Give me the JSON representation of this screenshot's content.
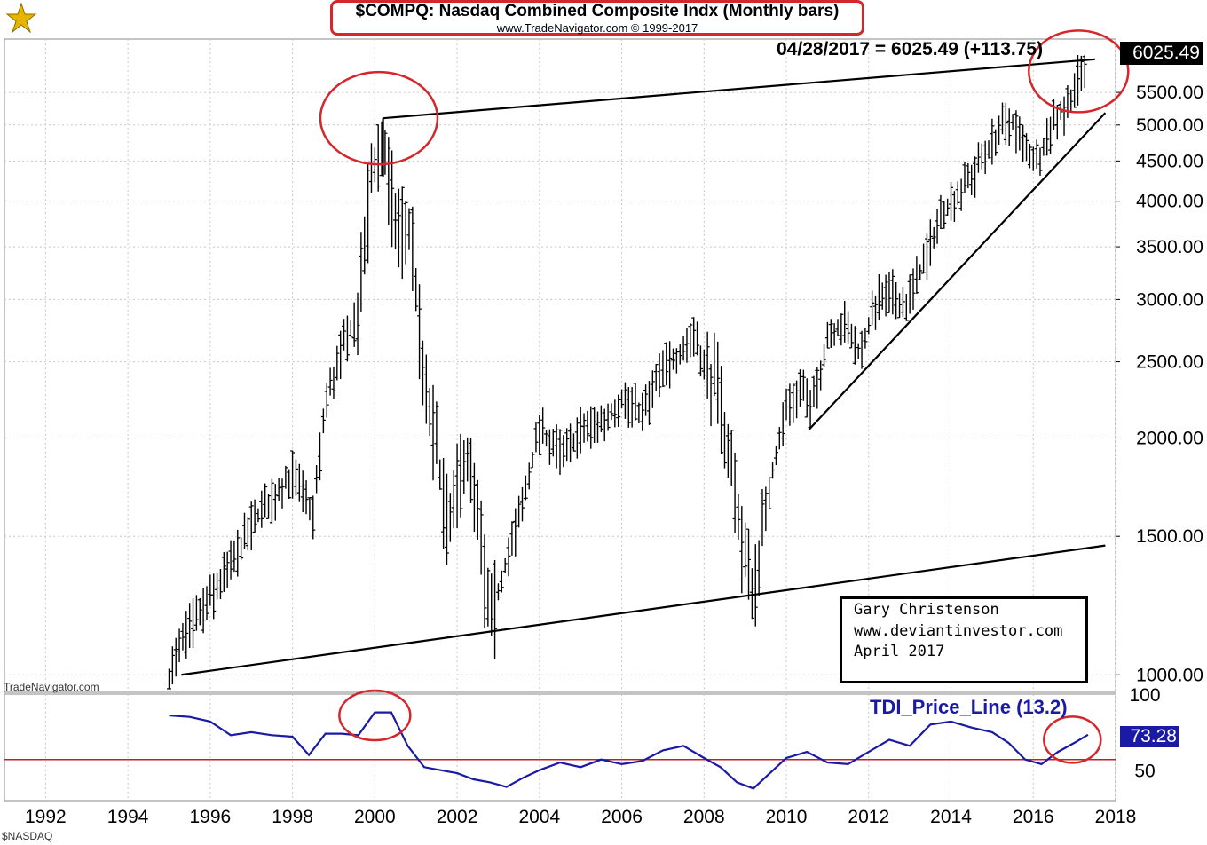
{
  "header": {
    "title": "$COMPQ:  Nasdaq Combined Composite Indx  (Monthly bars)",
    "subtitle": "www.TradeNavigator.com © 1999-2017"
  },
  "price_readout": "04/28/2017 = 6025.49 (+113.75)",
  "last_value_box": "6025.49",
  "watermark": "TradeNavigator.com",
  "symbol_footer": "$NASDAQ",
  "credit": {
    "line1": "Gary Christenson",
    "line2": "www.deviantinvestor.com",
    "line3": "April 2017"
  },
  "indicator": {
    "label": "TDI_Price_Line (13.2)",
    "last_value": "73.28"
  },
  "colors": {
    "bars": "#000000",
    "indicator_line": "#1a1aa6",
    "reference_line": "#c0201f",
    "annotation_circles": "#d4262b"
  },
  "chart_data": [
    {
      "type": "ohlc",
      "series_name": "$COMPQ",
      "scale": "log",
      "ylim": [
        950,
        6200
      ],
      "xlim": [
        1991.0,
        2018.0
      ],
      "y_ticks": [
        1000,
        1500,
        2000,
        2500,
        3000,
        3500,
        4000,
        4500,
        5000,
        5500
      ],
      "y_tick_labels": [
        "1000.00",
        "1500.00",
        "2000.00",
        "2500.00",
        "3000.00",
        "3500.00",
        "4000.00",
        "4500.00",
        "5000.00",
        "5500.00"
      ],
      "x_ticks": [
        1992,
        1994,
        1996,
        1998,
        2000,
        2002,
        2004,
        2006,
        2008,
        2010,
        2012,
        2014,
        2016,
        2018
      ],
      "x_tick_labels": [
        "1992",
        "1994",
        "1996",
        "1998",
        "2000",
        "2002",
        "2004",
        "2006",
        "2008",
        "2010",
        "2012",
        "2014",
        "2016",
        "2018"
      ],
      "grid": true,
      "key_points": [
        {
          "x": 1995.0,
          "y": 1000
        },
        {
          "x": 1995.5,
          "y": 1150
        },
        {
          "x": 1996.0,
          "y": 1250
        },
        {
          "x": 1996.5,
          "y": 1380
        },
        {
          "x": 1997.0,
          "y": 1550
        },
        {
          "x": 1997.5,
          "y": 1680
        },
        {
          "x": 1998.0,
          "y": 1800
        },
        {
          "x": 1998.5,
          "y": 1600
        },
        {
          "x": 1998.8,
          "y": 2200
        },
        {
          "x": 1999.2,
          "y": 2600
        },
        {
          "x": 1999.6,
          "y": 2900
        },
        {
          "x": 1999.9,
          "y": 4300
        },
        {
          "x": 2000.2,
          "y": 4700
        },
        {
          "x": 2000.5,
          "y": 3800
        },
        {
          "x": 2000.9,
          "y": 3600
        },
        {
          "x": 2001.2,
          "y": 2300
        },
        {
          "x": 2001.5,
          "y": 1950
        },
        {
          "x": 2001.8,
          "y": 1500
        },
        {
          "x": 2002.2,
          "y": 1950
        },
        {
          "x": 2002.6,
          "y": 1450
        },
        {
          "x": 2002.8,
          "y": 1150
        },
        {
          "x": 2003.2,
          "y": 1400
        },
        {
          "x": 2003.6,
          "y": 1650
        },
        {
          "x": 2004.0,
          "y": 2050
        },
        {
          "x": 2004.6,
          "y": 1900
        },
        {
          "x": 2005.0,
          "y": 2050
        },
        {
          "x": 2005.6,
          "y": 2100
        },
        {
          "x": 2006.0,
          "y": 2250
        },
        {
          "x": 2006.5,
          "y": 2150
        },
        {
          "x": 2007.0,
          "y": 2450
        },
        {
          "x": 2007.5,
          "y": 2600
        },
        {
          "x": 2007.8,
          "y": 2750
        },
        {
          "x": 2008.0,
          "y": 2450
        },
        {
          "x": 2008.3,
          "y": 2350
        },
        {
          "x": 2008.7,
          "y": 1800
        },
        {
          "x": 2009.0,
          "y": 1400
        },
        {
          "x": 2009.2,
          "y": 1280
        },
        {
          "x": 2009.6,
          "y": 1750
        },
        {
          "x": 2010.0,
          "y": 2200
        },
        {
          "x": 2010.4,
          "y": 2350
        },
        {
          "x": 2010.6,
          "y": 2150
        },
        {
          "x": 2011.0,
          "y": 2700
        },
        {
          "x": 2011.4,
          "y": 2800
        },
        {
          "x": 2011.8,
          "y": 2550
        },
        {
          "x": 2012.2,
          "y": 3000
        },
        {
          "x": 2012.6,
          "y": 3050
        },
        {
          "x": 2012.9,
          "y": 2950
        },
        {
          "x": 2013.3,
          "y": 3300
        },
        {
          "x": 2013.8,
          "y": 3900
        },
        {
          "x": 2014.3,
          "y": 4150
        },
        {
          "x": 2014.8,
          "y": 4550
        },
        {
          "x": 2015.2,
          "y": 4950
        },
        {
          "x": 2015.5,
          "y": 5050
        },
        {
          "x": 2015.8,
          "y": 4650
        },
        {
          "x": 2016.1,
          "y": 4500
        },
        {
          "x": 2016.5,
          "y": 5100
        },
        {
          "x": 2016.8,
          "y": 5250
        },
        {
          "x": 2017.0,
          "y": 5600
        },
        {
          "x": 2017.33,
          "y": 6025.49
        }
      ],
      "trendlines": [
        {
          "from": {
            "x": 1995.3,
            "y": 1000
          },
          "to": {
            "x": 2017.75,
            "y": 1460
          }
        },
        {
          "from": {
            "x": 2000.2,
            "y": 5100
          },
          "to": {
            "x": 2017.5,
            "y": 6060
          }
        },
        {
          "from": {
            "x": 2010.55,
            "y": 2050
          },
          "to": {
            "x": 2017.75,
            "y": 5180
          }
        }
      ]
    },
    {
      "type": "line",
      "series_name": "TDI_Price_Line (13.2)",
      "ylim": [
        30,
        100
      ],
      "y_ticks": [
        50,
        100
      ],
      "y_tick_labels": [
        "50",
        "100"
      ],
      "reference_line": 57,
      "x": [
        1995.0,
        1995.5,
        1996.0,
        1996.5,
        1997.0,
        1997.5,
        1998.0,
        1998.4,
        1998.8,
        1999.2,
        1999.6,
        2000.0,
        2000.4,
        2000.8,
        2001.2,
        2001.6,
        2002.0,
        2002.4,
        2002.8,
        2003.2,
        2003.6,
        2004.0,
        2004.5,
        2005.0,
        2005.5,
        2006.0,
        2006.5,
        2007.0,
        2007.5,
        2008.0,
        2008.4,
        2008.8,
        2009.2,
        2009.6,
        2010.0,
        2010.5,
        2011.0,
        2011.5,
        2012.0,
        2012.5,
        2013.0,
        2013.5,
        2014.0,
        2014.5,
        2015.0,
        2015.4,
        2015.8,
        2016.2,
        2016.6,
        2017.0,
        2017.33
      ],
      "values": [
        86,
        85,
        82,
        73,
        75,
        73,
        72,
        60,
        74,
        74,
        73,
        88,
        88,
        66,
        52,
        50,
        48,
        44,
        42,
        39,
        45,
        50,
        55,
        52,
        57,
        54,
        56,
        63,
        66,
        58,
        52,
        42,
        38,
        48,
        58,
        62,
        55,
        54,
        62,
        70,
        66,
        80,
        82,
        78,
        75,
        68,
        57,
        54,
        62,
        68,
        73.28
      ]
    }
  ]
}
